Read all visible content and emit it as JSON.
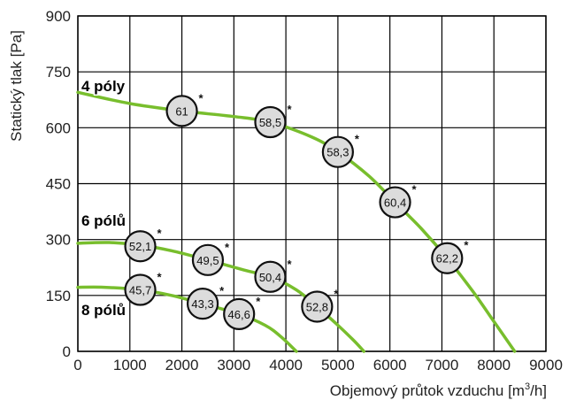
{
  "chart_data": {
    "type": "line",
    "title": "",
    "xlabel": "Objemový průtok vzduchu",
    "xlabel_unit_prefix": "[m",
    "xlabel_unit_sup": "3",
    "xlabel_unit_suffix": "/h]",
    "ylabel": "Statický tlak [Pa]",
    "xlim": [
      0,
      9000
    ],
    "ylim": [
      0,
      900
    ],
    "x_ticks": [
      "0",
      "1000",
      "2000",
      "3000",
      "4000",
      "5000",
      "6000",
      "7000",
      "8000",
      "9000"
    ],
    "y_ticks": [
      "0",
      "150",
      "300",
      "450",
      "600",
      "750",
      "900"
    ],
    "grid": true,
    "line_color": "#78be2d",
    "series": [
      {
        "name": "4 póly",
        "points": [
          [
            0,
            695
          ],
          [
            1000,
            665
          ],
          [
            2000,
            645
          ],
          [
            3000,
            630
          ],
          [
            3700,
            615
          ],
          [
            4500,
            575
          ],
          [
            5000,
            535
          ],
          [
            5600,
            470
          ],
          [
            6100,
            400
          ],
          [
            6600,
            330
          ],
          [
            7100,
            250
          ],
          [
            7600,
            160
          ],
          [
            8000,
            80
          ],
          [
            8400,
            0
          ]
        ]
      },
      {
        "name": "6 pólů",
        "points": [
          [
            0,
            290
          ],
          [
            600,
            292
          ],
          [
            1200,
            285
          ],
          [
            1800,
            270
          ],
          [
            2500,
            245
          ],
          [
            3200,
            218
          ],
          [
            3700,
            200
          ],
          [
            4200,
            165
          ],
          [
            4600,
            120
          ],
          [
            5000,
            70
          ],
          [
            5300,
            30
          ],
          [
            5500,
            0
          ]
        ]
      },
      {
        "name": "8 pólů",
        "points": [
          [
            0,
            172
          ],
          [
            500,
            172
          ],
          [
            1200,
            165
          ],
          [
            1800,
            150
          ],
          [
            2400,
            128
          ],
          [
            3100,
            100
          ],
          [
            3600,
            70
          ],
          [
            3900,
            40
          ],
          [
            4200,
            0
          ]
        ]
      }
    ],
    "annotations": [
      {
        "text": "61",
        "x": 2000,
        "y": 645,
        "star": "*"
      },
      {
        "text": "58,5",
        "x": 3700,
        "y": 615,
        "star": "*"
      },
      {
        "text": "58,3",
        "x": 5000,
        "y": 535,
        "star": "*"
      },
      {
        "text": "60,4",
        "x": 6100,
        "y": 400,
        "star": "*"
      },
      {
        "text": "62,2",
        "x": 7100,
        "y": 250,
        "star": "*"
      },
      {
        "text": "52,1",
        "x": 1200,
        "y": 282,
        "star": "*"
      },
      {
        "text": "49,5",
        "x": 2500,
        "y": 245,
        "star": "*"
      },
      {
        "text": "50,4",
        "x": 3700,
        "y": 200,
        "star": "*"
      },
      {
        "text": "52,8",
        "x": 4600,
        "y": 120,
        "star": "*"
      },
      {
        "text": "45,7",
        "x": 1200,
        "y": 165,
        "star": "*"
      },
      {
        "text": "43,3",
        "x": 2400,
        "y": 128,
        "star": "*"
      },
      {
        "text": "46,6",
        "x": 3100,
        "y": 100,
        "star": "*"
      }
    ]
  }
}
